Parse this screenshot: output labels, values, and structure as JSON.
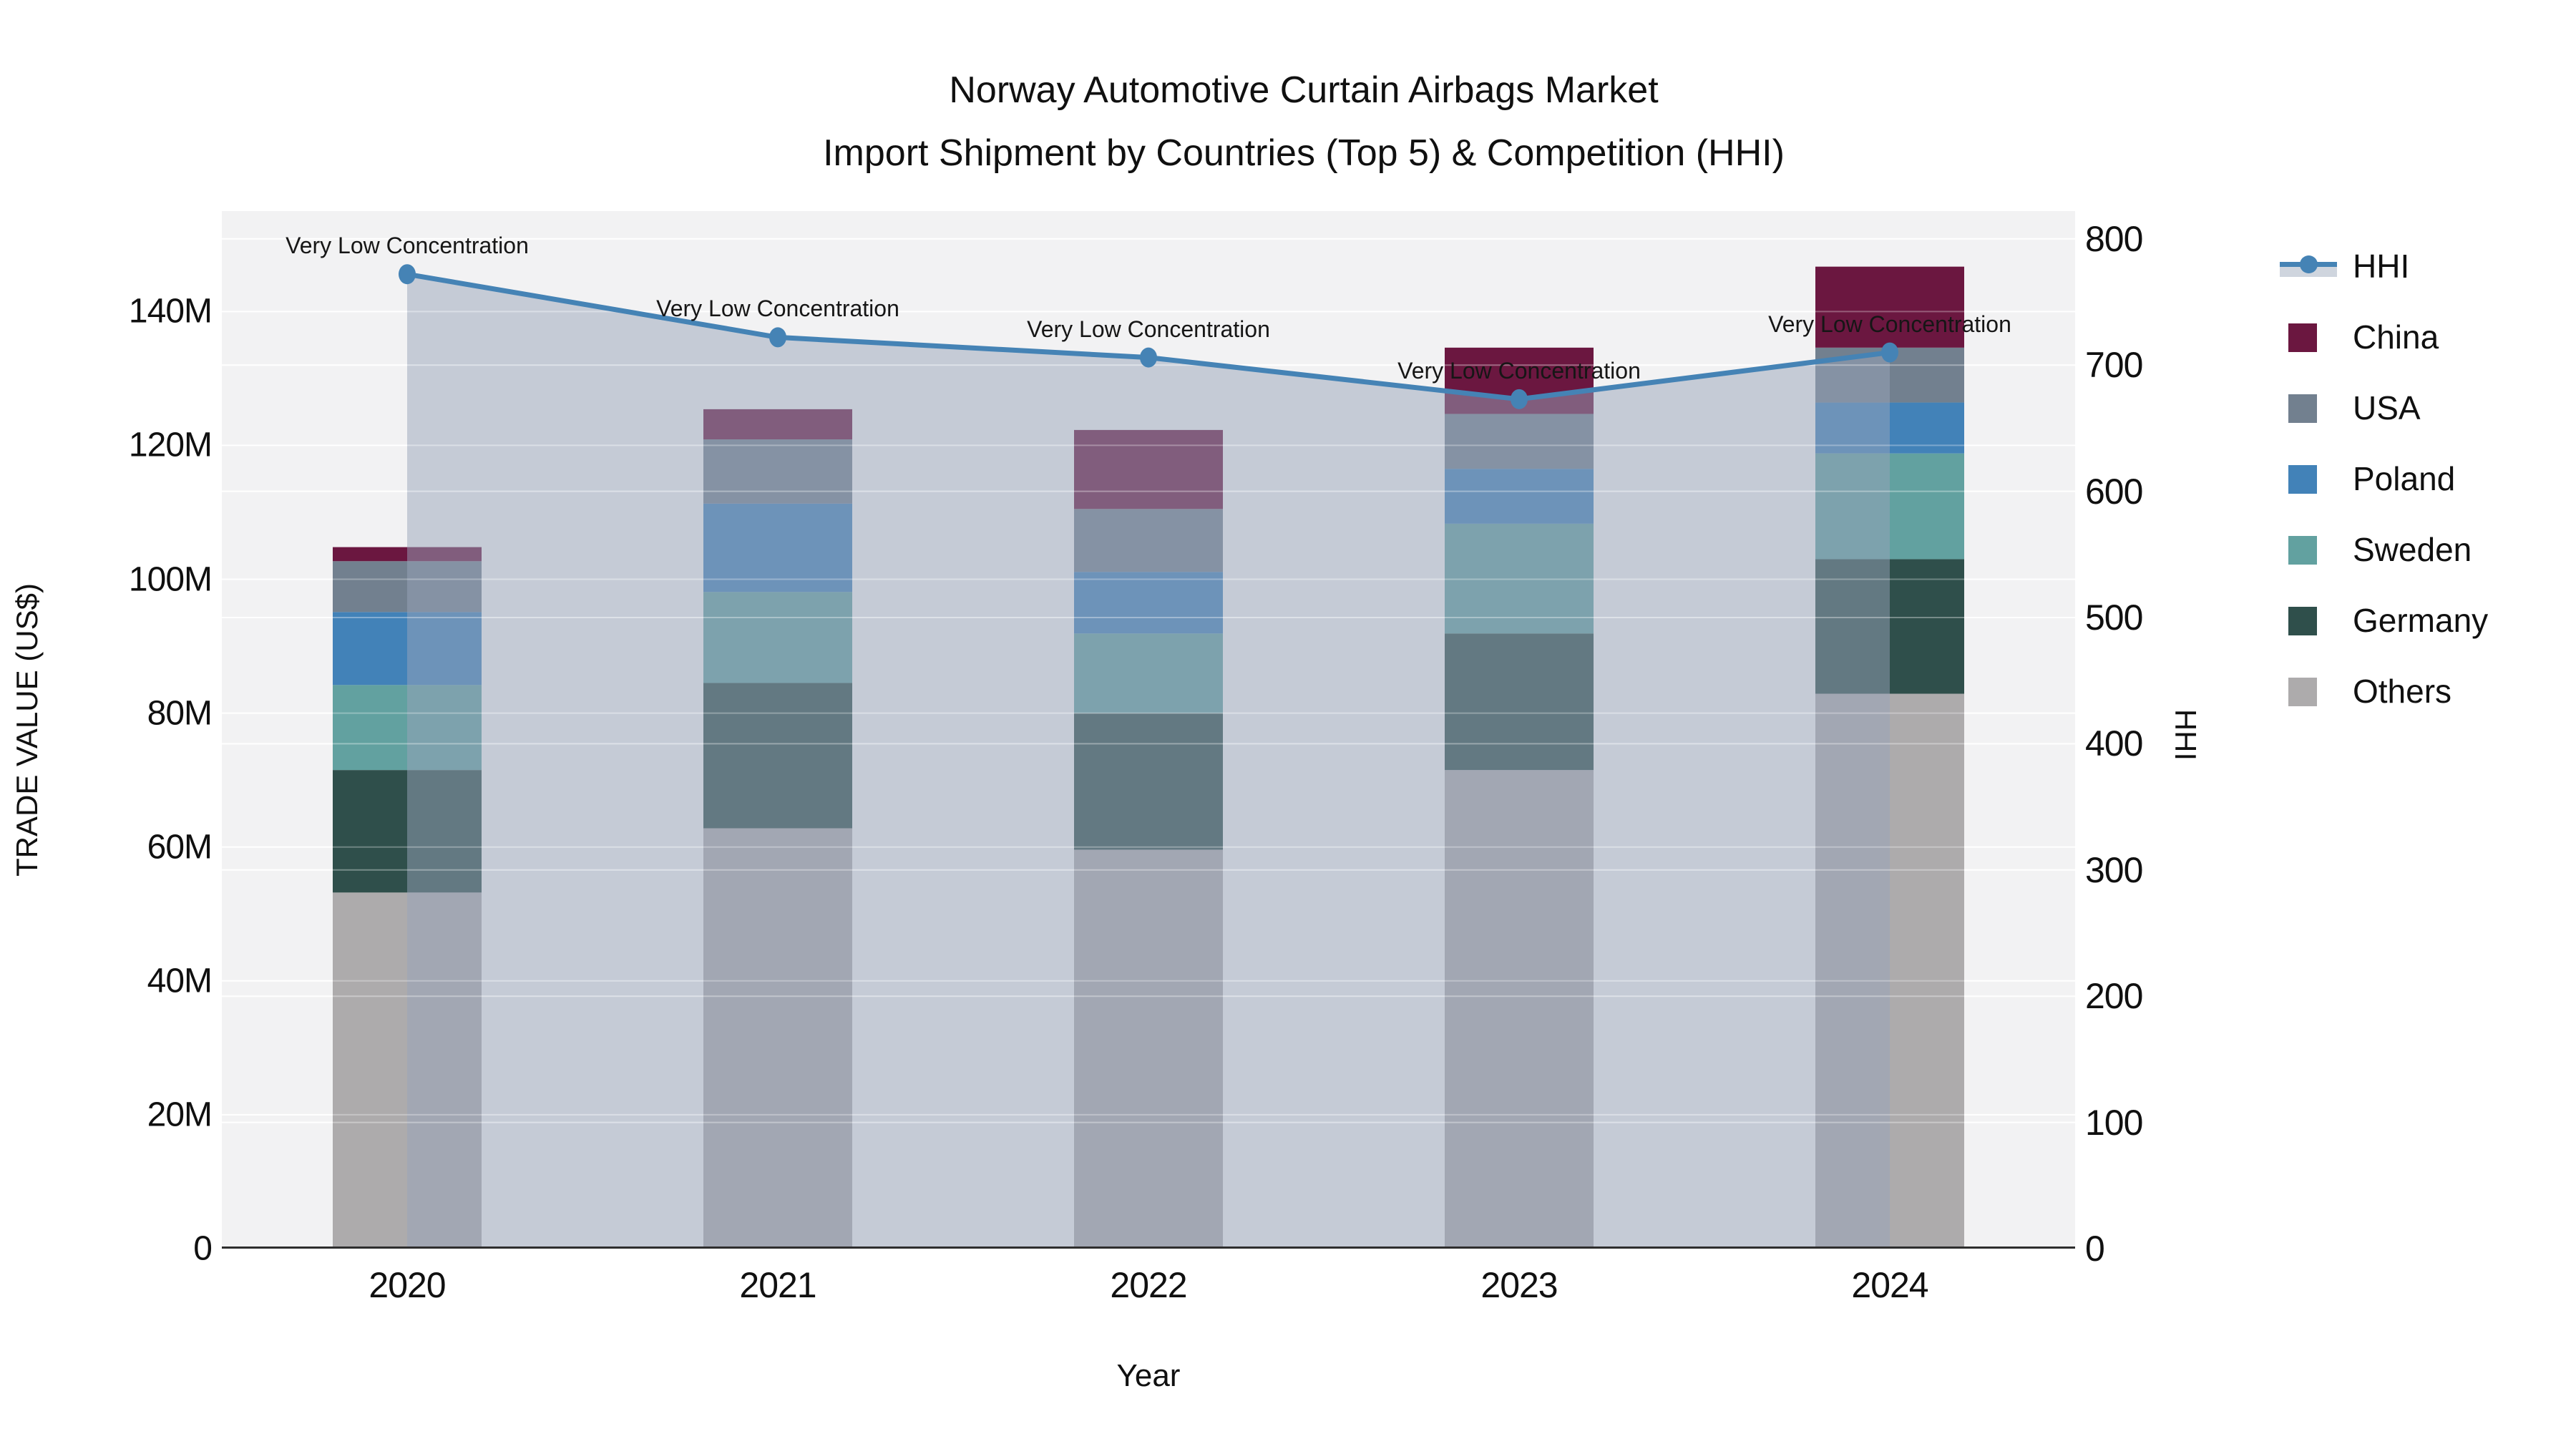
{
  "title": {
    "line1": "Norway Automotive Curtain Airbags Market",
    "line2": "Import Shipment by Countries (Top 5) & Competition (HHI)"
  },
  "axes": {
    "xlabel": "Year",
    "ylabel_left": "TRADE VALUE (US$)",
    "ylabel_right": "HHI"
  },
  "legend": {
    "items": [
      {
        "label": "HHI",
        "type": "line",
        "color": "#4583b5",
        "band": "#cfd5de"
      },
      {
        "label": "China",
        "type": "swatch",
        "color": "#6b1740"
      },
      {
        "label": "USA",
        "type": "swatch",
        "color": "#72808f"
      },
      {
        "label": "Poland",
        "type": "swatch",
        "color": "#4282b8"
      },
      {
        "label": "Sweden",
        "type": "swatch",
        "color": "#62a1a0"
      },
      {
        "label": "Germany",
        "type": "swatch",
        "color": "#2f4f4b"
      },
      {
        "label": "Others",
        "type": "swatch",
        "color": "#adabac"
      }
    ]
  },
  "chart_data": {
    "type": "bar",
    "stacked": true,
    "title": "Norway Automotive Curtain Airbags Market",
    "subtitle": "Import Shipment by Countries (Top 5) & Competition (HHI)",
    "xlabel": "Year",
    "ylabel": "TRADE VALUE (US$)",
    "ylabel_right": "HHI",
    "categories": [
      "2020",
      "2021",
      "2022",
      "2023",
      "2024"
    ],
    "value_unit": "million US$",
    "series": [
      {
        "name": "Others",
        "color": "#adabac",
        "values": [
          53.2,
          62.8,
          59.6,
          71.5,
          82.9
        ]
      },
      {
        "name": "Germany",
        "color": "#2f4f4b",
        "values": [
          18.3,
          21.7,
          20.4,
          20.4,
          20.1
        ]
      },
      {
        "name": "Sweden",
        "color": "#62a1a0",
        "values": [
          12.7,
          13.6,
          11.9,
          16.4,
          15.8
        ]
      },
      {
        "name": "Poland",
        "color": "#4282b8",
        "values": [
          10.9,
          13.2,
          9.2,
          8.2,
          7.6
        ]
      },
      {
        "name": "USA",
        "color": "#72808f",
        "values": [
          7.6,
          9.6,
          9.4,
          8.2,
          8.2
        ]
      },
      {
        "name": "China",
        "color": "#6b1740",
        "values": [
          2.1,
          4.5,
          11.8,
          9.9,
          12.1
        ]
      }
    ],
    "line_series": {
      "name": "HHI",
      "axis": "right",
      "color": "#4583b5",
      "area_fill": "rgba(152,164,186,0.5)",
      "values": [
        772,
        722,
        706,
        673,
        710
      ]
    },
    "annotations": [
      {
        "x": "2020",
        "text": "Very Low Concentration"
      },
      {
        "x": "2021",
        "text": "Very Low Concentration"
      },
      {
        "x": "2022",
        "text": "Very Low Concentration"
      },
      {
        "x": "2023",
        "text": "Very Low Concentration"
      },
      {
        "x": "2024",
        "text": "Very Low Concentration"
      }
    ],
    "yticks_left": {
      "values": [
        0,
        20,
        40,
        60,
        80,
        100,
        120,
        140
      ],
      "labels": [
        "0",
        "20M",
        "40M",
        "60M",
        "80M",
        "100M",
        "120M",
        "140M"
      ]
    },
    "yticks_right": {
      "values": [
        0,
        100,
        200,
        300,
        400,
        500,
        600,
        700,
        800
      ],
      "labels": [
        "0",
        "100",
        "200",
        "300",
        "400",
        "500",
        "600",
        "700",
        "800"
      ]
    },
    "ylim_left": [
      0,
      155
    ],
    "ylim_right": [
      0,
      822
    ],
    "grid": true,
    "legend_position": "right",
    "plot_background": "#f2f2f3",
    "grid_color": "#ffffff"
  }
}
